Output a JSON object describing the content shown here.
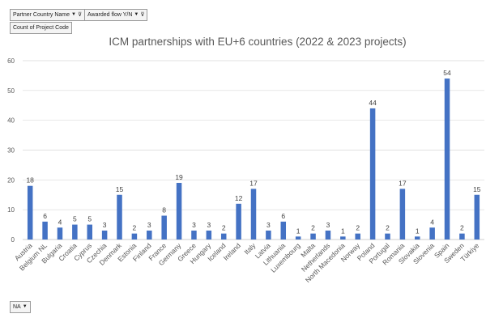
{
  "filters": {
    "partner_country": "Partner Country Name",
    "awarded_flow": "Awarded flow Y/N",
    "value_field": "Count of Project Code",
    "bottom_filter": "NA"
  },
  "colors": {
    "bar": "#4472C4",
    "gridline": "#d9d9d9",
    "text": "#595959"
  },
  "chart_data": {
    "type": "bar",
    "title": "ICM partnerships with EU+6 countries (2022 & 2023 projects)",
    "xlabel": "",
    "ylabel": "",
    "ylim": [
      0,
      60
    ],
    "yticks": [
      0,
      10,
      20,
      30,
      40,
      50,
      60
    ],
    "grid": "horizontal",
    "data_labels": true,
    "categories": [
      "Austria",
      "Belgium NL",
      "Bulgaria",
      "Croatia",
      "Cyprus",
      "Czechia",
      "Denmark",
      "Estonia",
      "Finland",
      "France",
      "Germany",
      "Greece",
      "Hungary",
      "Iceland",
      "Ireland",
      "Italy",
      "Latvia",
      "Lithuania",
      "Luxembourg",
      "Malta",
      "Netherlands",
      "North Macedonia",
      "Norway",
      "Poland",
      "Portugal",
      "Romania",
      "Slovakia",
      "Slovenia",
      "Spain",
      "Sweden",
      "Türkiye"
    ],
    "values": [
      18,
      6,
      4,
      5,
      5,
      3,
      15,
      2,
      3,
      8,
      19,
      3,
      3,
      2,
      12,
      17,
      3,
      6,
      1,
      2,
      3,
      1,
      2,
      44,
      2,
      17,
      1,
      4,
      54,
      2,
      15
    ]
  }
}
